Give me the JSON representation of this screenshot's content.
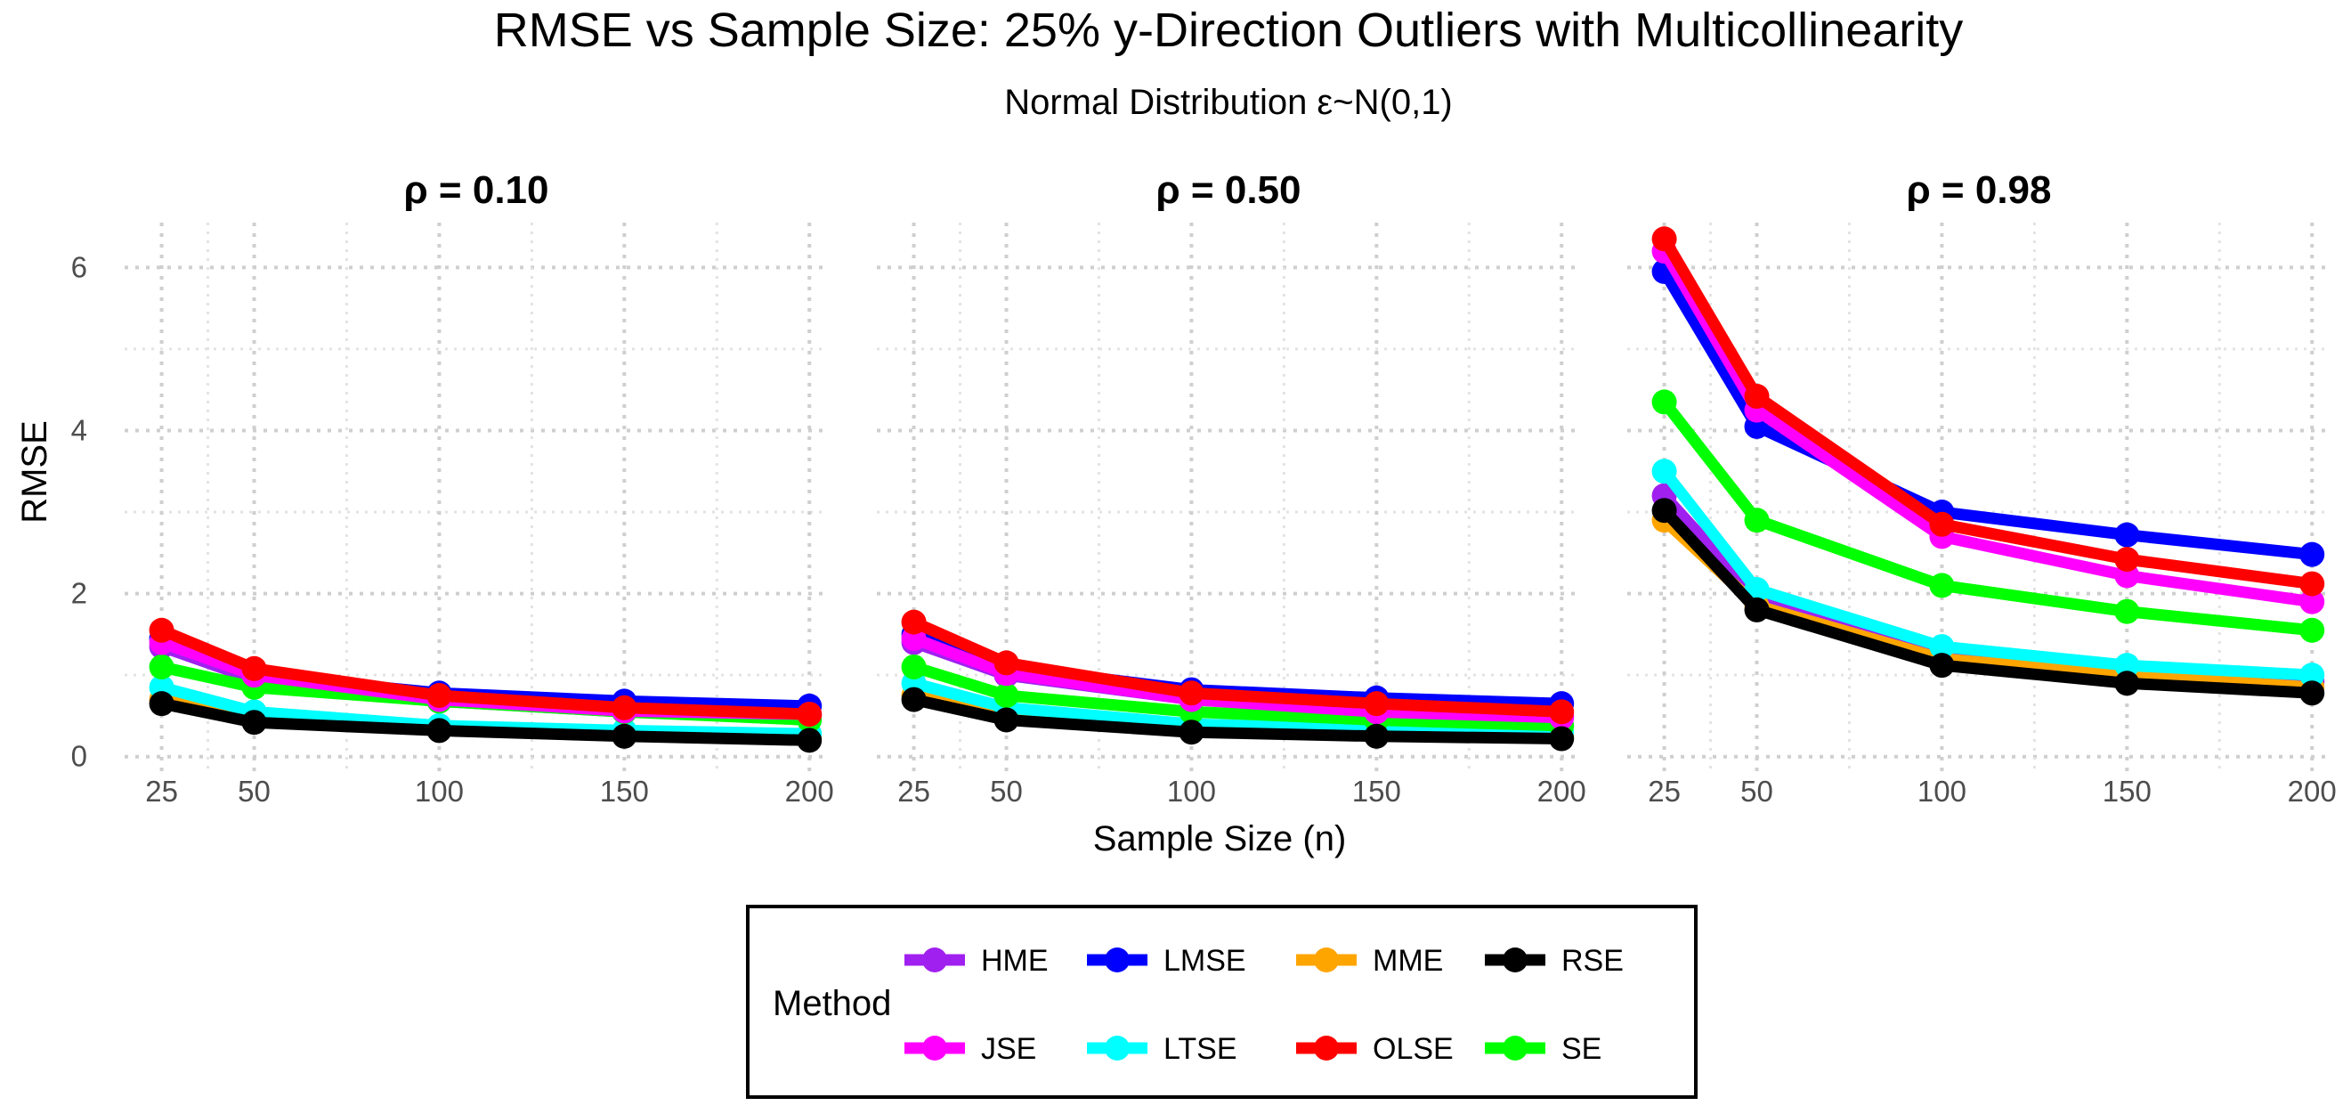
{
  "chart_data": {
    "type": "line",
    "title": "RMSE vs Sample Size: 25% y-Direction Outliers with Multicollinearity",
    "subtitle": "Normal Distribution ε~N(0,1)",
    "xlabel": "Sample Size (n)",
    "ylabel": "RMSE",
    "x": [
      25,
      50,
      100,
      150,
      200
    ],
    "xticks": [
      25,
      50,
      100,
      150,
      200
    ],
    "yticks": [
      0,
      2,
      4,
      6
    ],
    "xlim": [
      15,
      205
    ],
    "ylim": [
      -0.2,
      6.55
    ],
    "grid": true,
    "legend": {
      "title": "Method",
      "position": "bottom",
      "items": [
        "HME",
        "LMSE",
        "MME",
        "RSE",
        "JSE",
        "LTSE",
        "OLSE",
        "SE"
      ]
    },
    "colors": {
      "HME": "#a020f0",
      "LMSE": "#0000ff",
      "MME": "#ffa500",
      "RSE": "#000000",
      "JSE": "#ff00ff",
      "LTSE": "#00ffff",
      "OLSE": "#ff0000",
      "SE": "#00ff00"
    },
    "facets": [
      {
        "label": "ρ = 0.10",
        "series": [
          {
            "name": "HME",
            "values": [
              1.35,
              0.95,
              0.68,
              0.55,
              0.5
            ]
          },
          {
            "name": "LMSE",
            "values": [
              1.45,
              1.0,
              0.78,
              0.68,
              0.62
            ]
          },
          {
            "name": "MME",
            "values": [
              0.7,
              0.45,
              0.35,
              0.28,
              0.24
            ]
          },
          {
            "name": "LTSE",
            "values": [
              0.85,
              0.55,
              0.38,
              0.32,
              0.28
            ]
          },
          {
            "name": "SE",
            "values": [
              1.1,
              0.85,
              0.68,
              0.55,
              0.45
            ]
          },
          {
            "name": "JSE",
            "values": [
              1.4,
              1.0,
              0.7,
              0.56,
              0.52
            ]
          },
          {
            "name": "OLSE",
            "values": [
              1.55,
              1.08,
              0.75,
              0.6,
              0.52
            ]
          },
          {
            "name": "RSE",
            "values": [
              0.65,
              0.42,
              0.32,
              0.25,
              0.2
            ]
          }
        ]
      },
      {
        "label": "ρ = 0.50",
        "series": [
          {
            "name": "HME",
            "values": [
              1.4,
              1.0,
              0.7,
              0.58,
              0.5
            ]
          },
          {
            "name": "LMSE",
            "values": [
              1.5,
              1.1,
              0.82,
              0.72,
              0.65
            ]
          },
          {
            "name": "MME",
            "values": [
              0.75,
              0.48,
              0.35,
              0.28,
              0.25
            ]
          },
          {
            "name": "LTSE",
            "values": [
              0.9,
              0.6,
              0.4,
              0.33,
              0.3
            ]
          },
          {
            "name": "SE",
            "values": [
              1.1,
              0.75,
              0.55,
              0.45,
              0.38
            ]
          },
          {
            "name": "JSE",
            "values": [
              1.45,
              1.02,
              0.7,
              0.55,
              0.48
            ]
          },
          {
            "name": "OLSE",
            "values": [
              1.65,
              1.15,
              0.78,
              0.65,
              0.55
            ]
          },
          {
            "name": "RSE",
            "values": [
              0.7,
              0.45,
              0.3,
              0.25,
              0.22
            ]
          }
        ]
      },
      {
        "label": "ρ = 0.98",
        "series": [
          {
            "name": "HME",
            "values": [
              3.2,
              1.95,
              1.25,
              1.05,
              0.92
            ]
          },
          {
            "name": "LMSE",
            "values": [
              5.95,
              4.05,
              3.0,
              2.72,
              2.48
            ]
          },
          {
            "name": "MME",
            "values": [
              2.9,
              1.85,
              1.2,
              1.0,
              0.85
            ]
          },
          {
            "name": "LTSE",
            "values": [
              3.5,
              2.05,
              1.35,
              1.12,
              1.0
            ]
          },
          {
            "name": "SE",
            "values": [
              4.35,
              2.9,
              2.1,
              1.78,
              1.55
            ]
          },
          {
            "name": "JSE",
            "values": [
              6.2,
              4.25,
              2.7,
              2.22,
              1.9
            ]
          },
          {
            "name": "OLSE",
            "values": [
              6.35,
              4.42,
              2.85,
              2.42,
              2.12
            ]
          },
          {
            "name": "RSE",
            "values": [
              3.02,
              1.8,
              1.12,
              0.9,
              0.78
            ]
          }
        ]
      }
    ]
  }
}
